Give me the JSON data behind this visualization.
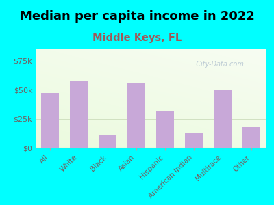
{
  "title": "Median per capita income in 2022",
  "subtitle": "Middle Keys, FL",
  "categories": [
    "All",
    "White",
    "Black",
    "Asian",
    "Hispanic",
    "American Indian",
    "Multirace",
    "Other"
  ],
  "values": [
    47500,
    58000,
    11000,
    56000,
    31000,
    13000,
    50000,
    18000
  ],
  "bar_color": "#c8a8d8",
  "background_outer": "#00ffff",
  "title_fontsize": 13,
  "subtitle_fontsize": 10.5,
  "subtitle_color": "#a05858",
  "tick_label_color": "#706060",
  "ylim": [
    0,
    85000
  ],
  "yticks": [
    0,
    25000,
    50000,
    75000
  ],
  "ytick_labels": [
    "$0",
    "$25k",
    "$50k",
    "$75k"
  ],
  "watermark": "  City-Data.com"
}
